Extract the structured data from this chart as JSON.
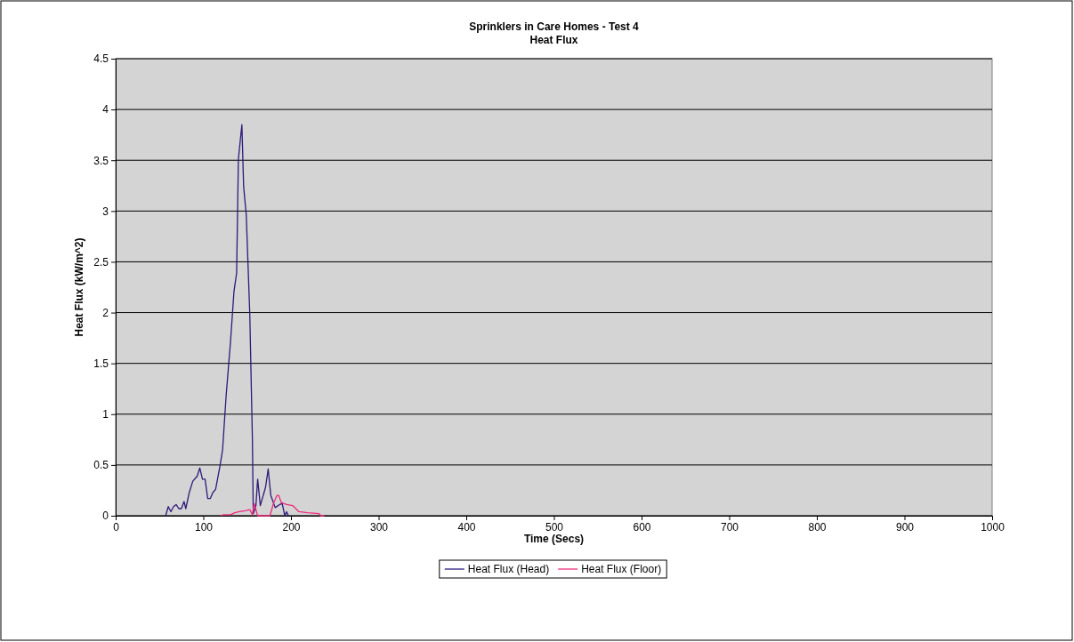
{
  "chart_data": {
    "type": "line",
    "title": "Sprinklers in Care Homes - Test 4",
    "subtitle": "Heat Flux",
    "xlabel": "Time (Secs)",
    "ylabel": "Heat Flux (kW/m^2)",
    "xlim": [
      0,
      1000
    ],
    "xticks": [
      0,
      100,
      200,
      300,
      400,
      500,
      600,
      700,
      800,
      900,
      1000
    ],
    "ylim": [
      0,
      4.5
    ],
    "yticks": [
      0,
      0.5,
      1,
      1.5,
      2,
      2.5,
      3,
      3.5,
      4,
      4.5
    ],
    "grid": "y",
    "legend": "bottom",
    "marker": "none",
    "line_style": "solid",
    "series": [
      {
        "name": "Heat Flux (Head)",
        "color": "#2e1a7a",
        "x": [
          57,
          60,
          63,
          66,
          69,
          72,
          75,
          78,
          80,
          84,
          88,
          93,
          96,
          99,
          102,
          105,
          108,
          111,
          114,
          119,
          122,
          126,
          129,
          131,
          135,
          138,
          140,
          144,
          146,
          149,
          153,
          156,
          157,
          160,
          162,
          165,
          171,
          174,
          177,
          182,
          187,
          190,
          193,
          195,
          197
        ],
        "values": [
          0,
          0.09,
          0.04,
          0.09,
          0.11,
          0.07,
          0.07,
          0.14,
          0.07,
          0.23,
          0.34,
          0.39,
          0.47,
          0.36,
          0.36,
          0.17,
          0.17,
          0.23,
          0.26,
          0.49,
          0.65,
          1.18,
          1.5,
          1.71,
          2.21,
          2.39,
          3.51,
          3.85,
          3.24,
          2.96,
          1.99,
          0.75,
          0.02,
          0.1,
          0.36,
          0.1,
          0.28,
          0.46,
          0.2,
          0.08,
          0.11,
          0.12,
          0,
          0.04,
          0
        ]
      },
      {
        "name": "Heat Flux (Floor)",
        "color": "#ee2a7b",
        "x": [
          120,
          123,
          131,
          136,
          141,
          148,
          153,
          156,
          158,
          162,
          176,
          180,
          184,
          186,
          189,
          195,
          202,
          209,
          219,
          232,
          234,
          238
        ],
        "values": [
          0,
          0.01,
          0.01,
          0.03,
          0.04,
          0.05,
          0.06,
          0.01,
          0.12,
          0,
          0,
          0.12,
          0.2,
          0.2,
          0.13,
          0.11,
          0.1,
          0.04,
          0.03,
          0.02,
          0,
          0
        ]
      }
    ]
  }
}
